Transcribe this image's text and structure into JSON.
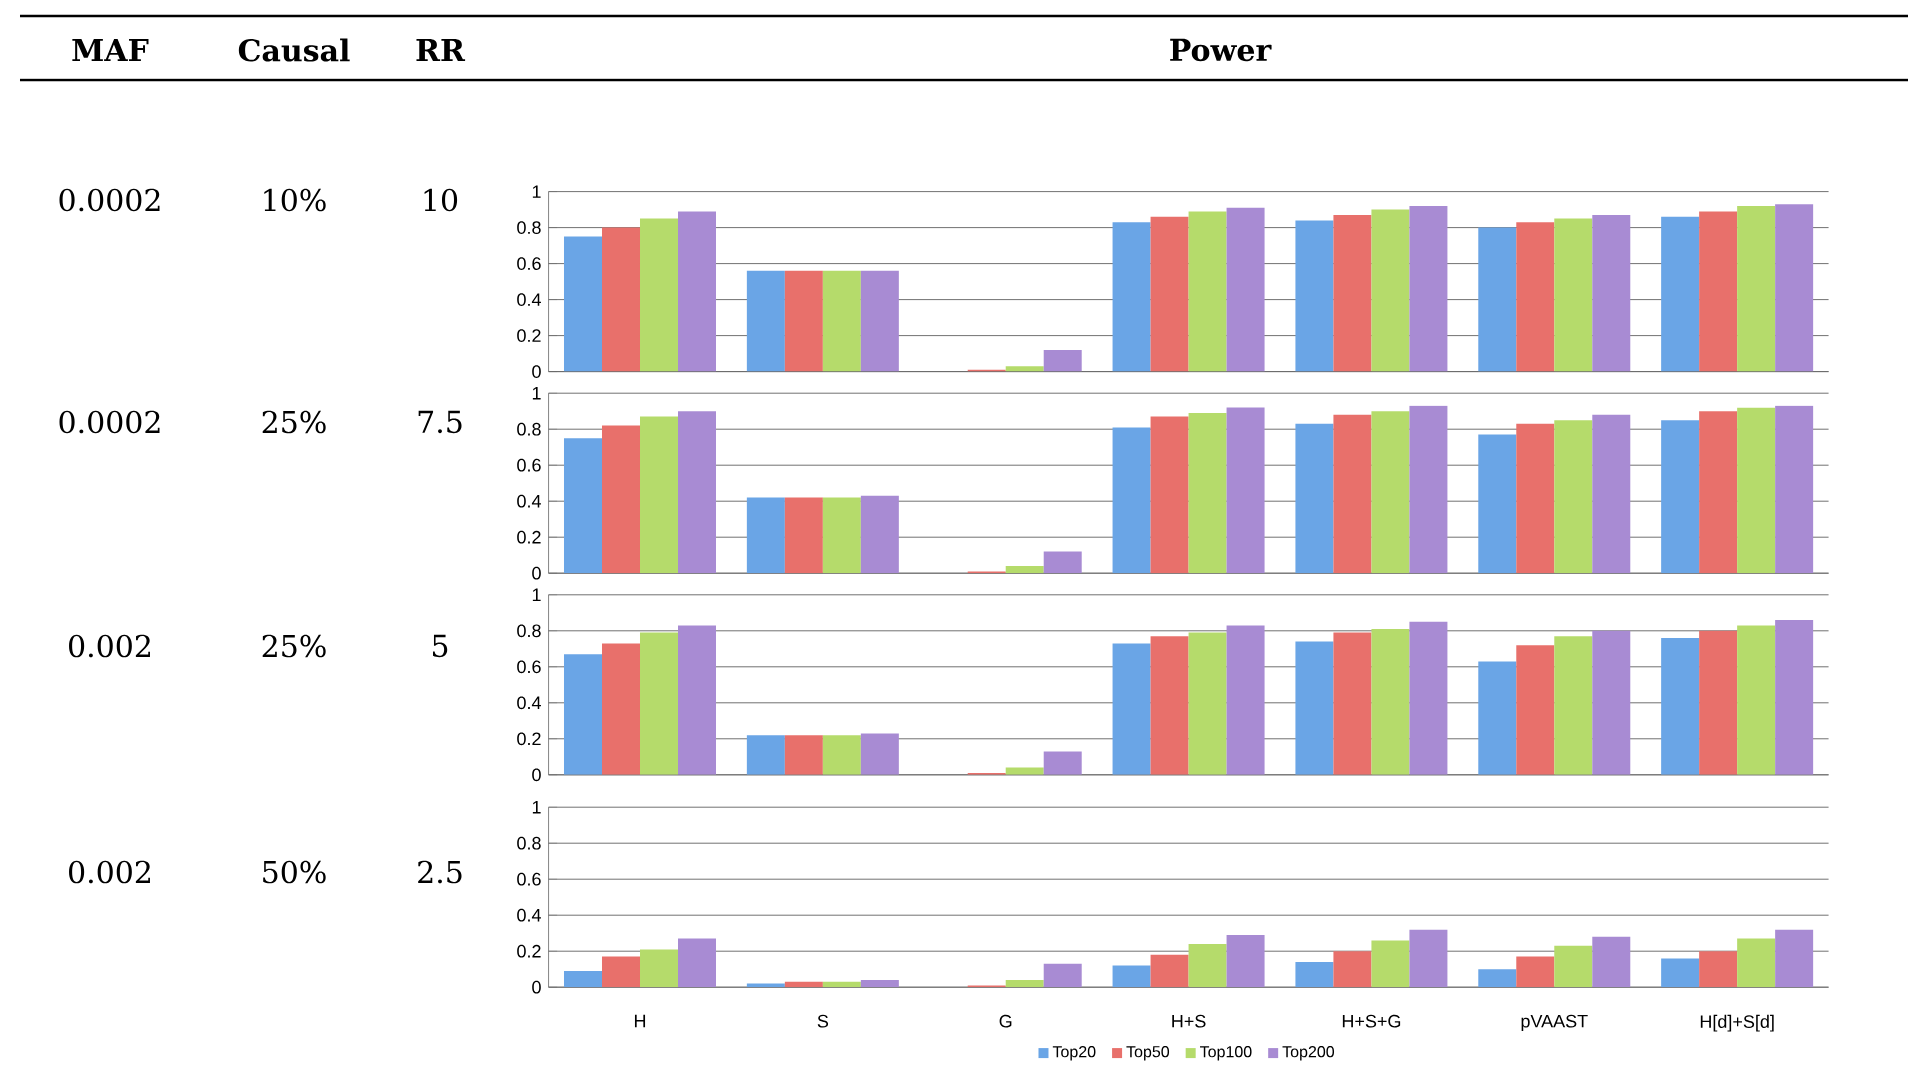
{
  "chart_data": [
    {
      "type": "other",
      "annotations": [
        "MAF",
        "Causal",
        "RR",
        "Power"
      ]
    },
    {
      "type": "bar",
      "categories": [
        null,
        null,
        null,
        null,
        null,
        null,
        null
      ],
      "ylim": [
        0,
        1
      ],
      "yticks": [
        0,
        0.2,
        0.4,
        0.6,
        0.8,
        1
      ],
      "grid": "y",
      "annotations": [
        "0.0002",
        "10%",
        "10"
      ],
      "series": [
        {
          "color": "#6aa5e6",
          "values": [
            0.75,
            0.56,
            0.0,
            0.83,
            0.84,
            0.8,
            0.86
          ]
        },
        {
          "color": "#e8706b",
          "values": [
            0.8,
            0.56,
            0.01,
            0.86,
            0.87,
            0.83,
            0.89
          ]
        },
        {
          "color": "#b5db6b",
          "values": [
            0.85,
            0.56,
            0.03,
            0.89,
            0.9,
            0.85,
            0.92
          ]
        },
        {
          "color": "#a88bd3",
          "values": [
            0.89,
            0.56,
            0.12,
            0.91,
            0.92,
            0.87,
            0.93
          ]
        }
      ]
    },
    {
      "type": "bar",
      "categories": [
        null,
        null,
        null,
        null,
        null,
        null,
        null
      ],
      "ylim": [
        0,
        1
      ],
      "yticks": [
        0,
        0.2,
        0.4,
        0.6,
        0.8,
        1
      ],
      "grid": "y",
      "annotations": [
        "0.0002",
        "25%",
        "7.5"
      ],
      "series": [
        {
          "color": "#6aa5e6",
          "values": [
            0.75,
            0.42,
            0.0,
            0.81,
            0.83,
            0.77,
            0.85
          ]
        },
        {
          "color": "#e8706b",
          "values": [
            0.82,
            0.42,
            0.01,
            0.87,
            0.88,
            0.83,
            0.9
          ]
        },
        {
          "color": "#b5db6b",
          "values": [
            0.87,
            0.42,
            0.04,
            0.89,
            0.9,
            0.85,
            0.92
          ]
        },
        {
          "color": "#a88bd3",
          "values": [
            0.9,
            0.43,
            0.12,
            0.92,
            0.93,
            0.88,
            0.93
          ]
        }
      ]
    },
    {
      "type": "bar",
      "categories": [
        null,
        null,
        null,
        null,
        null,
        null,
        null
      ],
      "ylim": [
        0,
        1
      ],
      "yticks": [
        0,
        0.2,
        0.4,
        0.6,
        0.8,
        1
      ],
      "grid": "y",
      "annotations": [
        "0.002",
        "25%",
        "5"
      ],
      "series": [
        {
          "color": "#6aa5e6",
          "values": [
            0.67,
            0.22,
            0.0,
            0.73,
            0.74,
            0.63,
            0.76
          ]
        },
        {
          "color": "#e8706b",
          "values": [
            0.73,
            0.22,
            0.01,
            0.77,
            0.79,
            0.72,
            0.8
          ]
        },
        {
          "color": "#b5db6b",
          "values": [
            0.79,
            0.22,
            0.04,
            0.79,
            0.81,
            0.77,
            0.83
          ]
        },
        {
          "color": "#a88bd3",
          "values": [
            0.83,
            0.23,
            0.13,
            0.83,
            0.85,
            0.8,
            0.86
          ]
        }
      ]
    },
    {
      "type": "bar",
      "categories": [
        "H",
        "S",
        "G",
        "H+S",
        "H+S+G",
        "pVAAST",
        "H[d]+S[d]"
      ],
      "ylim": [
        0,
        1
      ],
      "yticks": [
        0,
        0.2,
        0.4,
        0.6,
        0.8,
        1
      ],
      "grid": "y",
      "legend": "bottom",
      "annotations": [
        "0.002",
        "50%",
        "2.5"
      ],
      "series": [
        {
          "name": "Top20",
          "color": "#6aa5e6",
          "values": [
            0.09,
            0.02,
            0.0,
            0.12,
            0.14,
            0.1,
            0.16
          ]
        },
        {
          "name": "Top50",
          "color": "#e8706b",
          "values": [
            0.17,
            0.03,
            0.01,
            0.18,
            0.2,
            0.17,
            0.2
          ]
        },
        {
          "name": "Top100",
          "color": "#b5db6b",
          "values": [
            0.21,
            0.03,
            0.04,
            0.24,
            0.26,
            0.23,
            0.27
          ]
        },
        {
          "name": "Top200",
          "color": "#a88bd3",
          "values": [
            0.27,
            0.04,
            0.13,
            0.29,
            0.32,
            0.28,
            0.32
          ]
        }
      ]
    }
  ]
}
